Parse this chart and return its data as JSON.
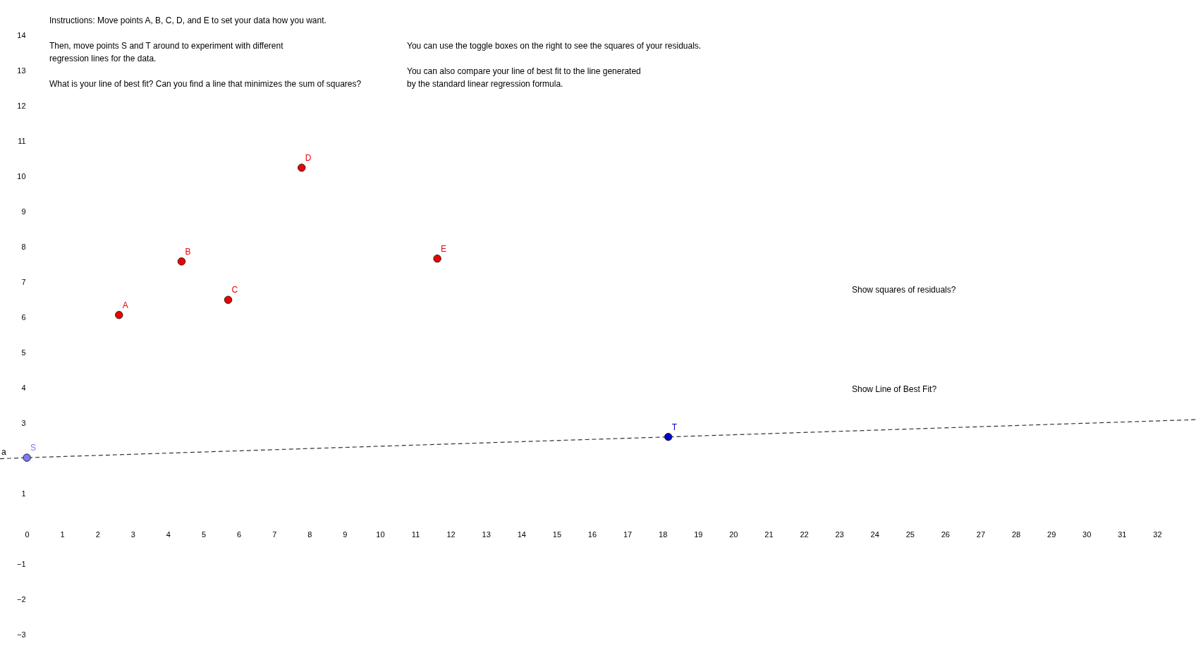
{
  "chart_data": {
    "type": "scatter",
    "marker": "circle",
    "grid": false,
    "xlim": [
      -0.76,
      33.1
    ],
    "ylim": [
      -3.57,
      15.02
    ],
    "xticks": [
      0,
      1,
      2,
      3,
      4,
      5,
      6,
      7,
      8,
      9,
      10,
      11,
      12,
      13,
      14,
      15,
      16,
      17,
      18,
      19,
      20,
      21,
      22,
      23,
      24,
      25,
      26,
      27,
      28,
      29,
      30,
      31,
      32
    ],
    "yticks": [
      -3,
      -2,
      -1,
      1,
      3,
      4,
      5,
      6,
      7,
      8,
      9,
      10,
      11,
      12,
      13,
      14
    ],
    "series": [
      {
        "type": "line",
        "name": "a",
        "marker": "none",
        "color": "#333333",
        "line_style": "dashed",
        "x": [
          -0.76,
          0,
          18.16,
          33.1
        ],
        "values": [
          2.0,
          2.03,
          2.62,
          3.11
        ]
      },
      {
        "color": "#ee0000",
        "x": [
          2.61,
          4.38,
          5.7,
          7.78,
          11.62
        ],
        "values": [
          6.08,
          7.6,
          6.51,
          10.26,
          7.68
        ]
      },
      {
        "color": "#7b7bff",
        "x": [
          0
        ],
        "values": [
          2.03
        ]
      },
      {
        "color": "#0000cc",
        "x": [
          18.16
        ],
        "values": [
          2.62
        ]
      }
    ],
    "annotations": [
      {
        "text": "A",
        "x": 2.61,
        "y": 6.08
      },
      {
        "text": "B",
        "x": 4.38,
        "y": 7.6
      },
      {
        "text": "C",
        "x": 5.7,
        "y": 6.51
      },
      {
        "text": "D",
        "x": 7.78,
        "y": 10.26
      },
      {
        "text": "E",
        "x": 11.62,
        "y": 7.68
      },
      {
        "text": "S",
        "x": 0,
        "y": 2.03
      },
      {
        "text": "T",
        "x": 18.16,
        "y": 2.62
      },
      "Instructions: Move points A, B, C, D, and E to set your data how you want.",
      "Then, move points S and T around to experiment with different\nregression lines for the data.",
      "What is your line of best fit? Can you find a line that minimizes the sum of squares?",
      "You can use the toggle boxes on the right to see the squares of your residuals.",
      "You can also compare your line of best fit to the line generated\nby the standard linear regression formula.",
      "Show squares of residuals?",
      "Show Line of Best Fit?"
    ]
  }
}
